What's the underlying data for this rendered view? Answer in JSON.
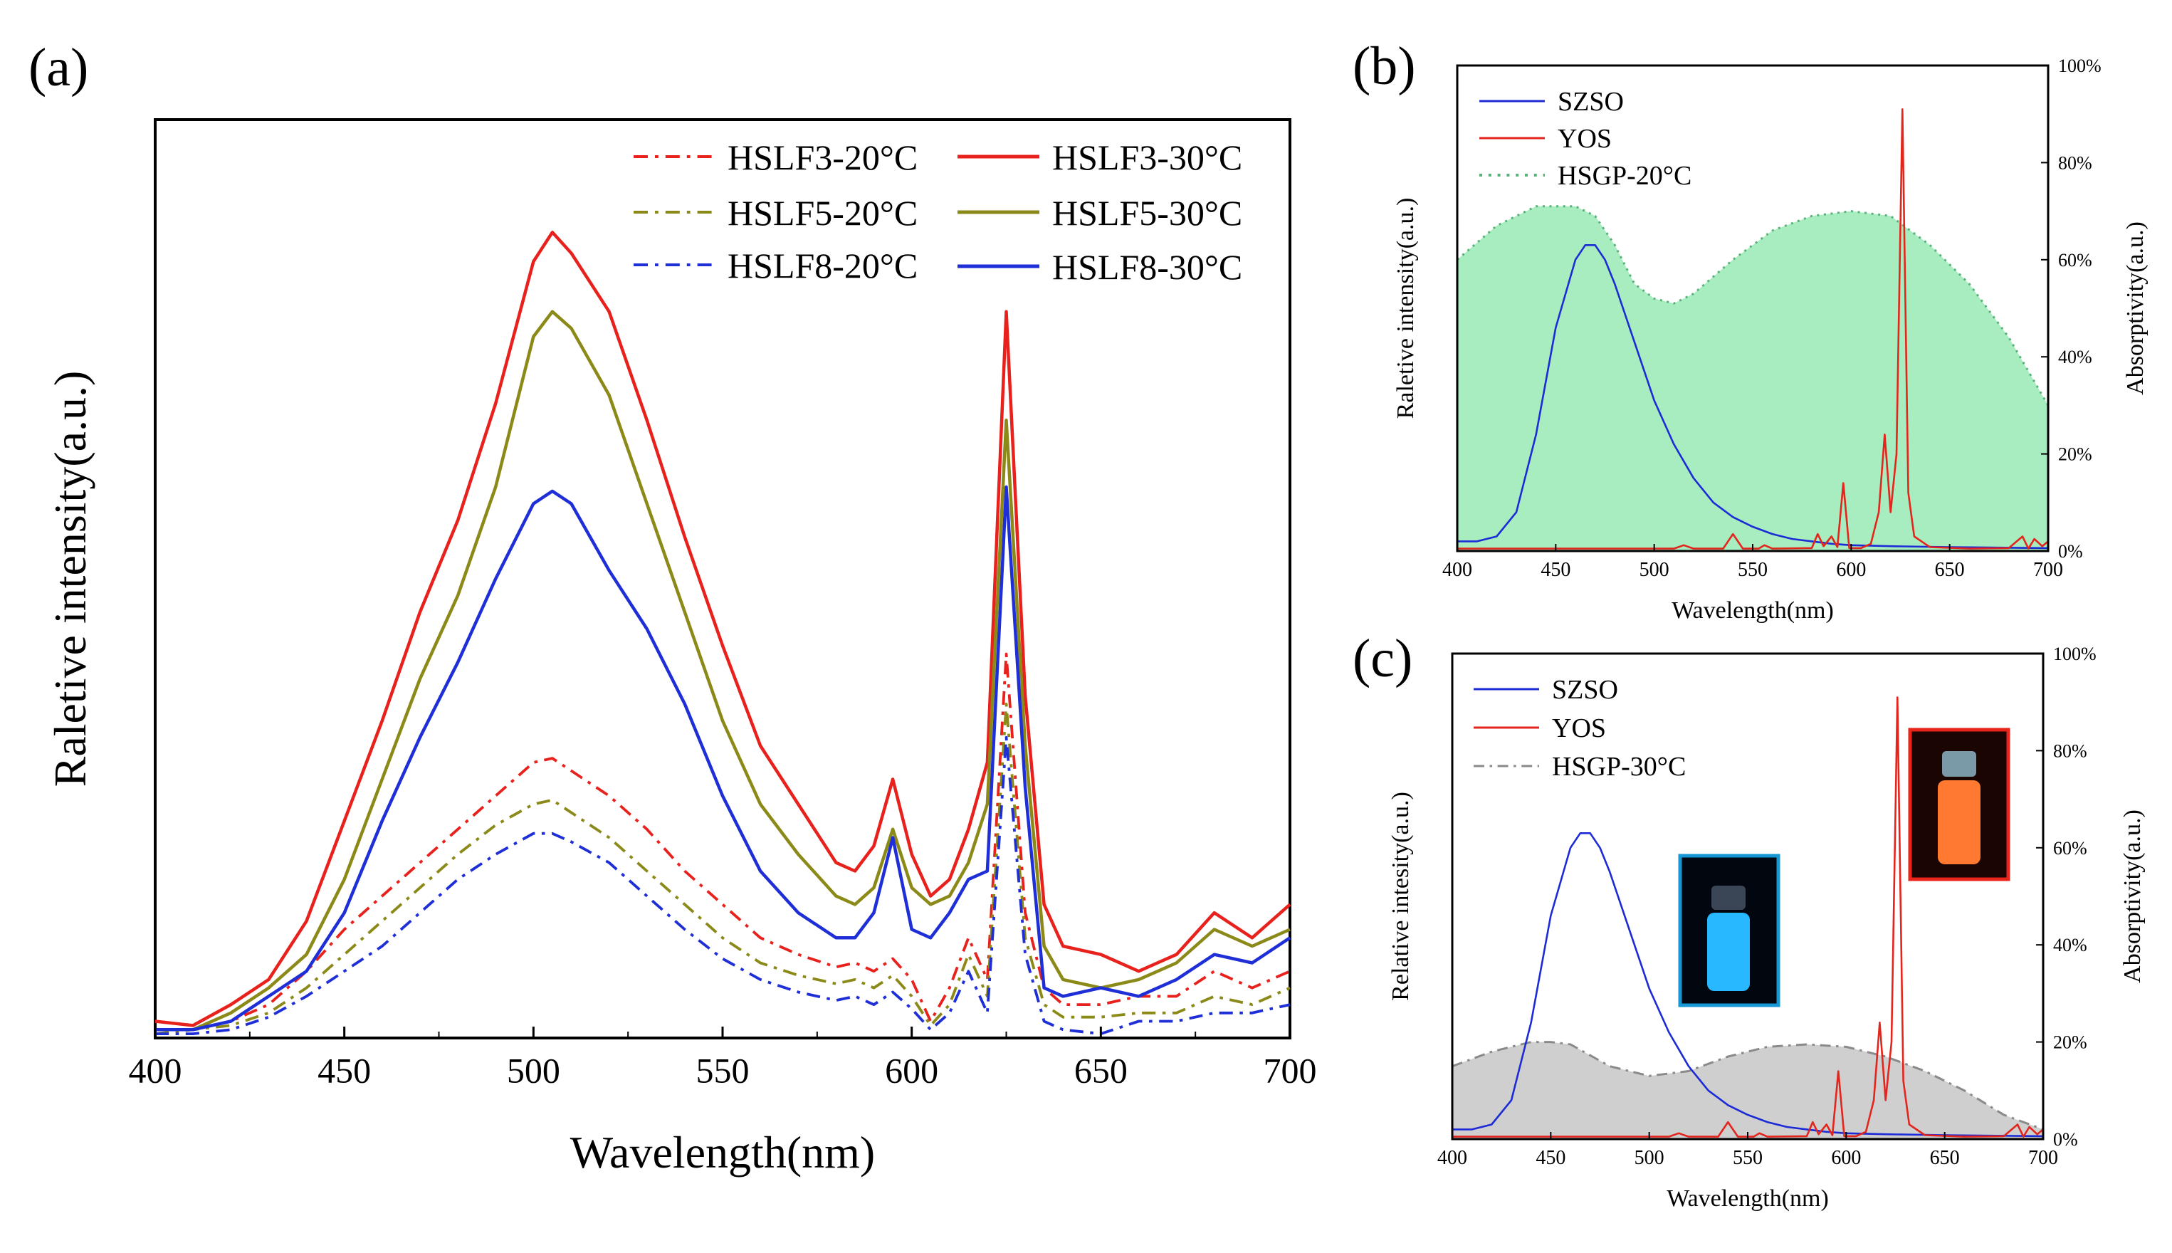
{
  "chart_data": [
    {
      "panel": "(a)",
      "type": "line",
      "xlabel": "Wavelength(nm)",
      "ylabel": "Raletive intensity(a.u.)",
      "xlim": [
        400,
        700
      ],
      "ylim": [
        0,
        1.1
      ],
      "xticks": [
        400,
        450,
        500,
        550,
        600,
        650,
        700
      ],
      "x": [
        400,
        410,
        420,
        430,
        440,
        450,
        460,
        470,
        480,
        490,
        500,
        505,
        510,
        520,
        530,
        540,
        550,
        560,
        570,
        580,
        585,
        590,
        595,
        600,
        605,
        610,
        615,
        620,
        625,
        630,
        635,
        640,
        650,
        660,
        670,
        680,
        690,
        700
      ],
      "legend": "top-right",
      "series": [
        {
          "name": "HSLF3-20°C",
          "color": "#e8211d",
          "dash": "dashdot",
          "values": [
            0.01,
            0.01,
            0.02,
            0.04,
            0.08,
            0.13,
            0.17,
            0.21,
            0.25,
            0.29,
            0.33,
            0.335,
            0.32,
            0.29,
            0.25,
            0.2,
            0.16,
            0.12,
            0.1,
            0.085,
            0.09,
            0.08,
            0.095,
            0.07,
            0.02,
            0.06,
            0.12,
            0.07,
            0.46,
            0.15,
            0.06,
            0.04,
            0.04,
            0.05,
            0.05,
            0.08,
            0.06,
            0.08
          ]
        },
        {
          "name": "HSLF5-20°C",
          "color": "#8b8a18",
          "dash": "dashdot",
          "values": [
            0.005,
            0.01,
            0.015,
            0.03,
            0.06,
            0.1,
            0.14,
            0.18,
            0.22,
            0.255,
            0.28,
            0.285,
            0.27,
            0.24,
            0.2,
            0.16,
            0.12,
            0.09,
            0.075,
            0.065,
            0.07,
            0.06,
            0.075,
            0.05,
            0.015,
            0.04,
            0.1,
            0.05,
            0.4,
            0.12,
            0.04,
            0.025,
            0.025,
            0.03,
            0.03,
            0.05,
            0.04,
            0.06
          ]
        },
        {
          "name": "HSLF8-20°C",
          "color": "#1f2fd8",
          "dash": "dashdot",
          "values": [
            0.005,
            0.005,
            0.01,
            0.025,
            0.05,
            0.08,
            0.11,
            0.15,
            0.19,
            0.22,
            0.245,
            0.245,
            0.235,
            0.21,
            0.17,
            0.13,
            0.095,
            0.07,
            0.055,
            0.045,
            0.05,
            0.04,
            0.055,
            0.035,
            0.01,
            0.03,
            0.08,
            0.03,
            0.36,
            0.1,
            0.02,
            0.01,
            0.005,
            0.02,
            0.02,
            0.03,
            0.03,
            0.04
          ]
        },
        {
          "name": "HSLF3-30°C",
          "color": "#e8211d",
          "dash": "solid",
          "values": [
            0.02,
            0.015,
            0.04,
            0.07,
            0.14,
            0.26,
            0.38,
            0.51,
            0.62,
            0.76,
            0.93,
            0.965,
            0.94,
            0.87,
            0.74,
            0.6,
            0.47,
            0.35,
            0.28,
            0.21,
            0.2,
            0.23,
            0.31,
            0.22,
            0.17,
            0.19,
            0.25,
            0.33,
            0.87,
            0.41,
            0.16,
            0.11,
            0.1,
            0.08,
            0.1,
            0.15,
            0.12,
            0.16
          ]
        },
        {
          "name": "HSLF5-30°C",
          "color": "#8b8a18",
          "dash": "solid",
          "values": [
            0.01,
            0.01,
            0.03,
            0.06,
            0.1,
            0.19,
            0.31,
            0.43,
            0.53,
            0.66,
            0.84,
            0.87,
            0.85,
            0.77,
            0.64,
            0.51,
            0.38,
            0.28,
            0.22,
            0.17,
            0.16,
            0.18,
            0.25,
            0.18,
            0.16,
            0.17,
            0.21,
            0.28,
            0.74,
            0.35,
            0.11,
            0.07,
            0.06,
            0.07,
            0.09,
            0.13,
            0.11,
            0.13
          ]
        },
        {
          "name": "HSLF8-30°C",
          "color": "#1f2fd8",
          "dash": "solid",
          "values": [
            0.01,
            0.01,
            0.02,
            0.05,
            0.08,
            0.15,
            0.26,
            0.36,
            0.45,
            0.55,
            0.64,
            0.655,
            0.64,
            0.56,
            0.49,
            0.4,
            0.29,
            0.2,
            0.15,
            0.12,
            0.12,
            0.15,
            0.24,
            0.13,
            0.12,
            0.15,
            0.19,
            0.2,
            0.66,
            0.3,
            0.06,
            0.05,
            0.06,
            0.05,
            0.07,
            0.1,
            0.09,
            0.12
          ]
        }
      ]
    },
    {
      "panel": "(b)",
      "type": "line",
      "xlabel": "Wavelength(nm)",
      "ylabel": "Raletive intensity(a.u.)",
      "y2label": "Absorptivity(a.u.)",
      "xlim": [
        400,
        700
      ],
      "ylim": [
        0,
        1
      ],
      "y2lim": [
        0,
        100
      ],
      "xticks": [
        400,
        450,
        500,
        550,
        600,
        650,
        700
      ],
      "y2ticks": [
        "0%",
        "20%",
        "40%",
        "60%",
        "80%",
        "100%"
      ],
      "legend": "top-left",
      "series": [
        {
          "name": "SZSO",
          "color": "#1c2bd6",
          "dash": "solid",
          "x": [
            400,
            410,
            420,
            430,
            440,
            450,
            460,
            465,
            470,
            475,
            480,
            490,
            500,
            510,
            520,
            530,
            540,
            550,
            560,
            570,
            580,
            590,
            600,
            620,
            650,
            700
          ],
          "values": [
            0.02,
            0.02,
            0.03,
            0.08,
            0.24,
            0.46,
            0.6,
            0.63,
            0.63,
            0.6,
            0.55,
            0.43,
            0.31,
            0.22,
            0.15,
            0.1,
            0.07,
            0.05,
            0.035,
            0.025,
            0.02,
            0.015,
            0.012,
            0.01,
            0.008,
            0.006
          ]
        },
        {
          "name": "YOS",
          "color": "#e3261d",
          "dash": "solid",
          "x": [
            400,
            500,
            510,
            515,
            520,
            535,
            540,
            545,
            553,
            556,
            560,
            580,
            583,
            586,
            590,
            593,
            596,
            599,
            605,
            610,
            614,
            617,
            620,
            623,
            626,
            629,
            632,
            640,
            660,
            680,
            687,
            690,
            693,
            697,
            700
          ],
          "values": [
            0.005,
            0.005,
            0.005,
            0.012,
            0.005,
            0.005,
            0.035,
            0.005,
            0.005,
            0.012,
            0.005,
            0.006,
            0.035,
            0.01,
            0.03,
            0.008,
            0.14,
            0.006,
            0.006,
            0.015,
            0.08,
            0.24,
            0.08,
            0.2,
            0.91,
            0.12,
            0.03,
            0.008,
            0.005,
            0.006,
            0.03,
            0.005,
            0.025,
            0.01,
            0.02
          ]
        },
        {
          "name": "HSGP-20°C",
          "color": "#58b27a",
          "fill": "#a8edc0",
          "dash": "dotted",
          "axis": "right",
          "x": [
            400,
            420,
            440,
            460,
            470,
            480,
            490,
            500,
            510,
            520,
            540,
            560,
            580,
            600,
            620,
            640,
            660,
            680,
            700
          ],
          "values": [
            60,
            67,
            71,
            71,
            69,
            63,
            55,
            52,
            51,
            53,
            60,
            66,
            69,
            70,
            69,
            63,
            55,
            44,
            30
          ]
        }
      ]
    },
    {
      "panel": "(c)",
      "type": "line",
      "xlabel": "Wavelength(nm)",
      "ylabel": "Relative intesity(a.u.)",
      "y2label": "Absorptivity(a.u.)",
      "xlim": [
        400,
        700
      ],
      "ylim": [
        0,
        1
      ],
      "y2lim": [
        0,
        100
      ],
      "xticks": [
        400,
        450,
        500,
        550,
        600,
        650,
        700
      ],
      "y2ticks": [
        "0%",
        "20%",
        "40%",
        "60%",
        "80%",
        "100%"
      ],
      "legend": "top-left",
      "series": [
        {
          "name": "SZSO",
          "color": "#1c2bd6",
          "dash": "solid",
          "x": [
            400,
            410,
            420,
            430,
            440,
            450,
            460,
            465,
            470,
            475,
            480,
            490,
            500,
            510,
            520,
            530,
            540,
            550,
            560,
            570,
            580,
            590,
            600,
            620,
            650,
            700
          ],
          "values": [
            0.02,
            0.02,
            0.03,
            0.08,
            0.24,
            0.46,
            0.6,
            0.63,
            0.63,
            0.6,
            0.55,
            0.43,
            0.31,
            0.22,
            0.15,
            0.1,
            0.07,
            0.05,
            0.035,
            0.025,
            0.02,
            0.015,
            0.012,
            0.01,
            0.008,
            0.006
          ]
        },
        {
          "name": "YOS",
          "color": "#e3261d",
          "dash": "solid",
          "x": [
            400,
            500,
            510,
            515,
            520,
            535,
            540,
            545,
            553,
            556,
            560,
            580,
            583,
            586,
            590,
            593,
            596,
            599,
            605,
            610,
            614,
            617,
            620,
            623,
            626,
            629,
            632,
            640,
            660,
            680,
            687,
            690,
            693,
            697,
            700
          ],
          "values": [
            0.005,
            0.005,
            0.005,
            0.012,
            0.005,
            0.005,
            0.035,
            0.005,
            0.005,
            0.012,
            0.005,
            0.006,
            0.035,
            0.01,
            0.03,
            0.008,
            0.14,
            0.006,
            0.006,
            0.015,
            0.08,
            0.24,
            0.08,
            0.2,
            0.91,
            0.12,
            0.03,
            0.008,
            0.005,
            0.006,
            0.03,
            0.005,
            0.025,
            0.01,
            0.02
          ]
        },
        {
          "name": "HSGP-30°C",
          "color": "#8a8a8a",
          "fill": "#cfcfcf",
          "dash": "dashdot",
          "axis": "right",
          "x": [
            400,
            420,
            440,
            450,
            460,
            480,
            500,
            520,
            540,
            560,
            580,
            600,
            620,
            640,
            660,
            680,
            700
          ],
          "values": [
            15,
            18,
            20,
            20,
            19.5,
            15,
            13,
            14,
            17,
            19,
            19.5,
            19,
            17,
            14,
            10,
            5,
            2
          ]
        }
      ]
    }
  ],
  "panel_labels": {
    "a": "(a)",
    "b": "(b)",
    "c": "(c)"
  },
  "insets": [
    {
      "name": "blue-emitting-sample-vial-photo",
      "glow_color": "#27b8ff",
      "border_color": "#1797d4"
    },
    {
      "name": "orange-emitting-sample-vial-photo",
      "glow_color": "#ff7a30",
      "border_color": "#e8241b"
    }
  ]
}
